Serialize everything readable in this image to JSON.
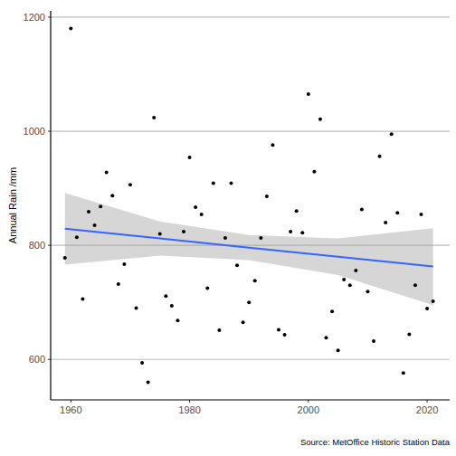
{
  "chart_data": {
    "type": "scatter",
    "y_label": "Annual Rain /mm",
    "caption": "Source: MetOffice Historic Station Data",
    "xlim": [
      1956.6,
      2023.8
    ],
    "ylim": [
      529,
      1211
    ],
    "xticks": [
      1960,
      1980,
      2000,
      2020
    ],
    "yticks": [
      600,
      800,
      1000,
      1200
    ],
    "grid": true,
    "series": [
      {
        "type": "scatter",
        "color": "#000000",
        "marker": "circle",
        "x": [
          1959,
          1960,
          1961,
          1962,
          1963,
          1964,
          1965,
          1966,
          1967,
          1968,
          1969,
          1970,
          1971,
          1972,
          1973,
          1974,
          1975,
          1976,
          1977,
          1978,
          1979,
          1980,
          1981,
          1982,
          1983,
          1984,
          1985,
          1986,
          1987,
          1988,
          1989,
          1990,
          1991,
          1992,
          1993,
          1994,
          1995,
          1996,
          1997,
          1998,
          1999,
          2000,
          2001,
          2002,
          2003,
          2004,
          2005,
          2006,
          2007,
          2008,
          2009,
          2010,
          2011,
          2012,
          2013,
          2014,
          2015,
          2016,
          2017,
          2018,
          2019,
          2020,
          2021
        ],
        "values": [
          778,
          1180,
          814,
          706,
          859,
          835,
          868,
          928,
          887,
          732,
          767,
          906,
          690,
          594,
          560,
          1024,
          820,
          711,
          694,
          668,
          824,
          954,
          867,
          854,
          725,
          909,
          651,
          813,
          909,
          765,
          665,
          700,
          738,
          813,
          886,
          976,
          652,
          643,
          824,
          860,
          822,
          1065,
          929,
          1021,
          638,
          684,
          616,
          740,
          730,
          756,
          863,
          719,
          632,
          956,
          840,
          995,
          857,
          576,
          644,
          730,
          854,
          689,
          702
        ]
      },
      {
        "type": "line",
        "color": "#3366ff",
        "x": [
          1959,
          1975,
          1990,
          2005,
          2021
        ],
        "values": [
          829,
          812,
          796,
          780,
          763
        ],
        "lower": [
          766,
          782,
          774,
          748,
          695
        ],
        "upper": [
          892,
          842,
          818,
          812,
          830
        ]
      }
    ]
  }
}
